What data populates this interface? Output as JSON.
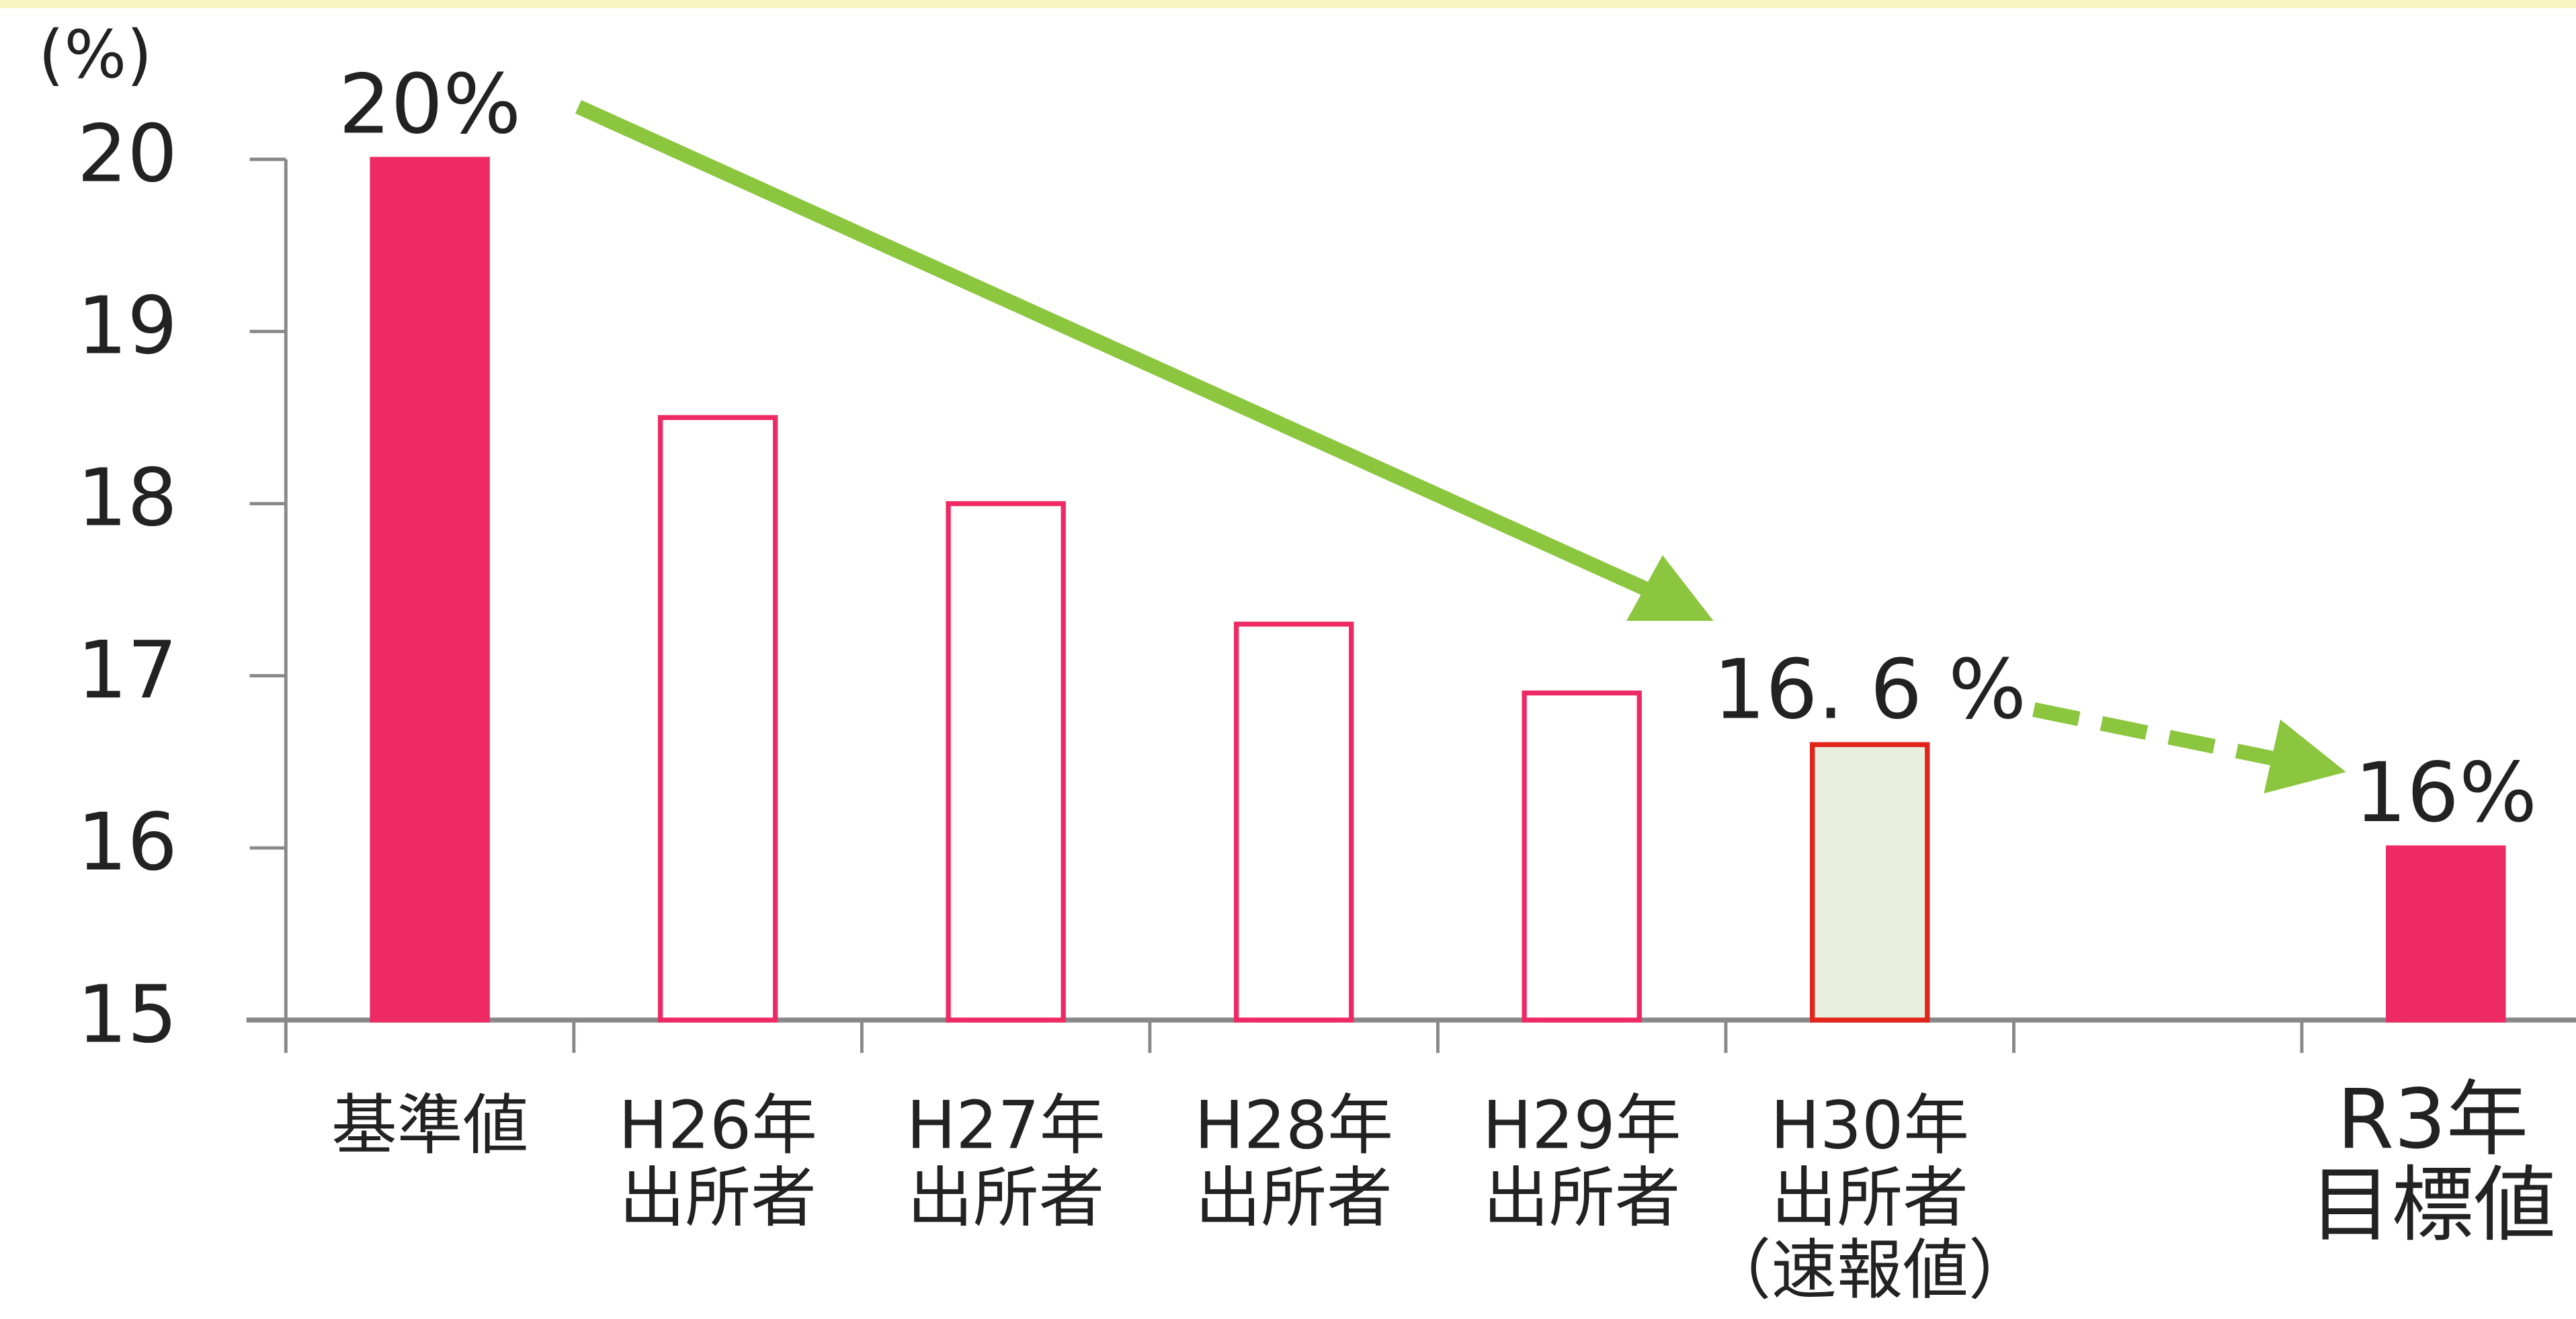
{
  "chart_data": {
    "type": "bar",
    "y_label": "(%)",
    "categories": [
      [
        "基準値"
      ],
      [
        "H26年",
        "出所者"
      ],
      [
        "H27年",
        "出所者"
      ],
      [
        "H28年",
        "出所者"
      ],
      [
        "H29年",
        "出所者"
      ],
      [
        "H30年",
        "出所者",
        "（速報値）"
      ],
      null,
      [
        "R3年",
        "目標値"
      ]
    ],
    "values": [
      20,
      18.5,
      18,
      17.3,
      16.9,
      16.6,
      null,
      16
    ],
    "value_labels": [
      "20%",
      null,
      null,
      null,
      null,
      "16. 6 %",
      null,
      "16%"
    ],
    "colors": [
      "#ee2a64",
      "#ffffff",
      "#ffffff",
      "#ffffff",
      "#ffffff",
      "#e8efdc",
      null,
      "#ee2a64"
    ],
    "edge_colors": [
      "#ee2a64",
      "#ee2a64",
      "#ee2a64",
      "#ee2a64",
      "#ee2a64",
      "#e2231a",
      null,
      "#ee2a64"
    ],
    "ylim": [
      15,
      20
    ],
    "yticks": [
      15,
      16,
      17,
      18,
      19,
      20
    ],
    "grid": false
  }
}
